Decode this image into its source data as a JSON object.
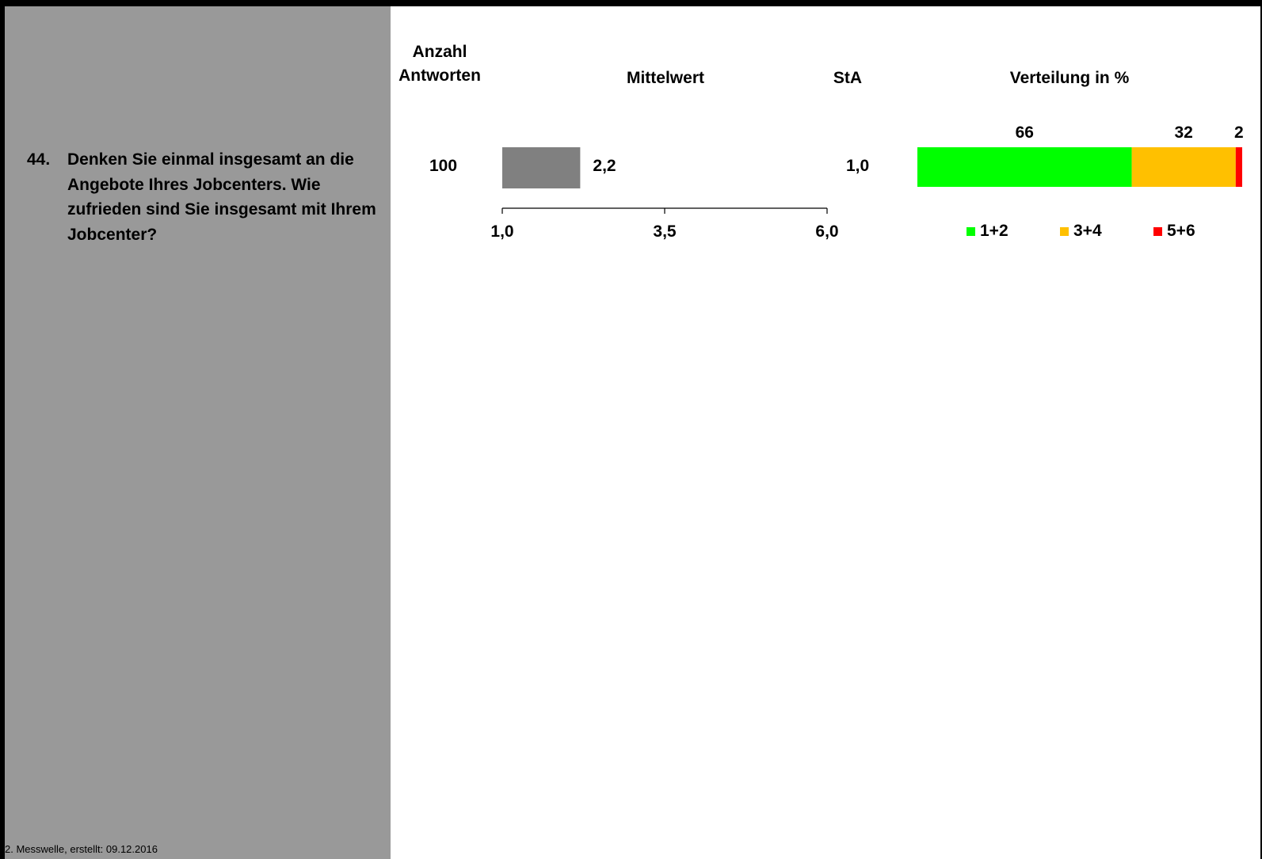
{
  "question": {
    "number": "44.",
    "text": "Denken Sie einmal insgesamt an die Angebote Ihres Jobcenters. Wie zufrieden sind Sie insgesamt mit Ihrem Jobcenter?"
  },
  "footer": "2. Messwelle, erstellt: 09.12.2016",
  "headers": {
    "count_line1": "Anzahl",
    "count_line2": "Antworten",
    "mean": "Mittelwert",
    "sd": "StA",
    "distribution": "Verteilung in %"
  },
  "colors": {
    "panel": "#999999",
    "mean_bar": "#808080",
    "g12": "#00ff00",
    "g34": "#ffc000",
    "g56": "#ff0000"
  },
  "chart_data": [
    {
      "type": "bar",
      "title": "Mittelwert",
      "orientation": "horizontal",
      "categories": [
        "44"
      ],
      "values": [
        2.2
      ],
      "value_labels": [
        "2,2"
      ],
      "xlim": [
        1.0,
        6.0
      ],
      "ticks": [
        1.0,
        3.5,
        6.0
      ],
      "tick_labels": [
        "1,0",
        "3,5",
        "6,0"
      ],
      "count": "100",
      "sd": "1,0",
      "grid": false
    },
    {
      "type": "bar",
      "stacked": true,
      "orientation": "horizontal",
      "title": "Verteilung in %",
      "categories": [
        "44"
      ],
      "series": [
        {
          "name": "1+2",
          "values": [
            66
          ],
          "label": "66",
          "color": "#00ff00"
        },
        {
          "name": "3+4",
          "values": [
            32
          ],
          "label": "32",
          "color": "#ffc000"
        },
        {
          "name": "5+6",
          "values": [
            2
          ],
          "label": "2",
          "color": "#ff0000"
        }
      ],
      "xlim": [
        0,
        100
      ],
      "legend": "bottom"
    }
  ]
}
